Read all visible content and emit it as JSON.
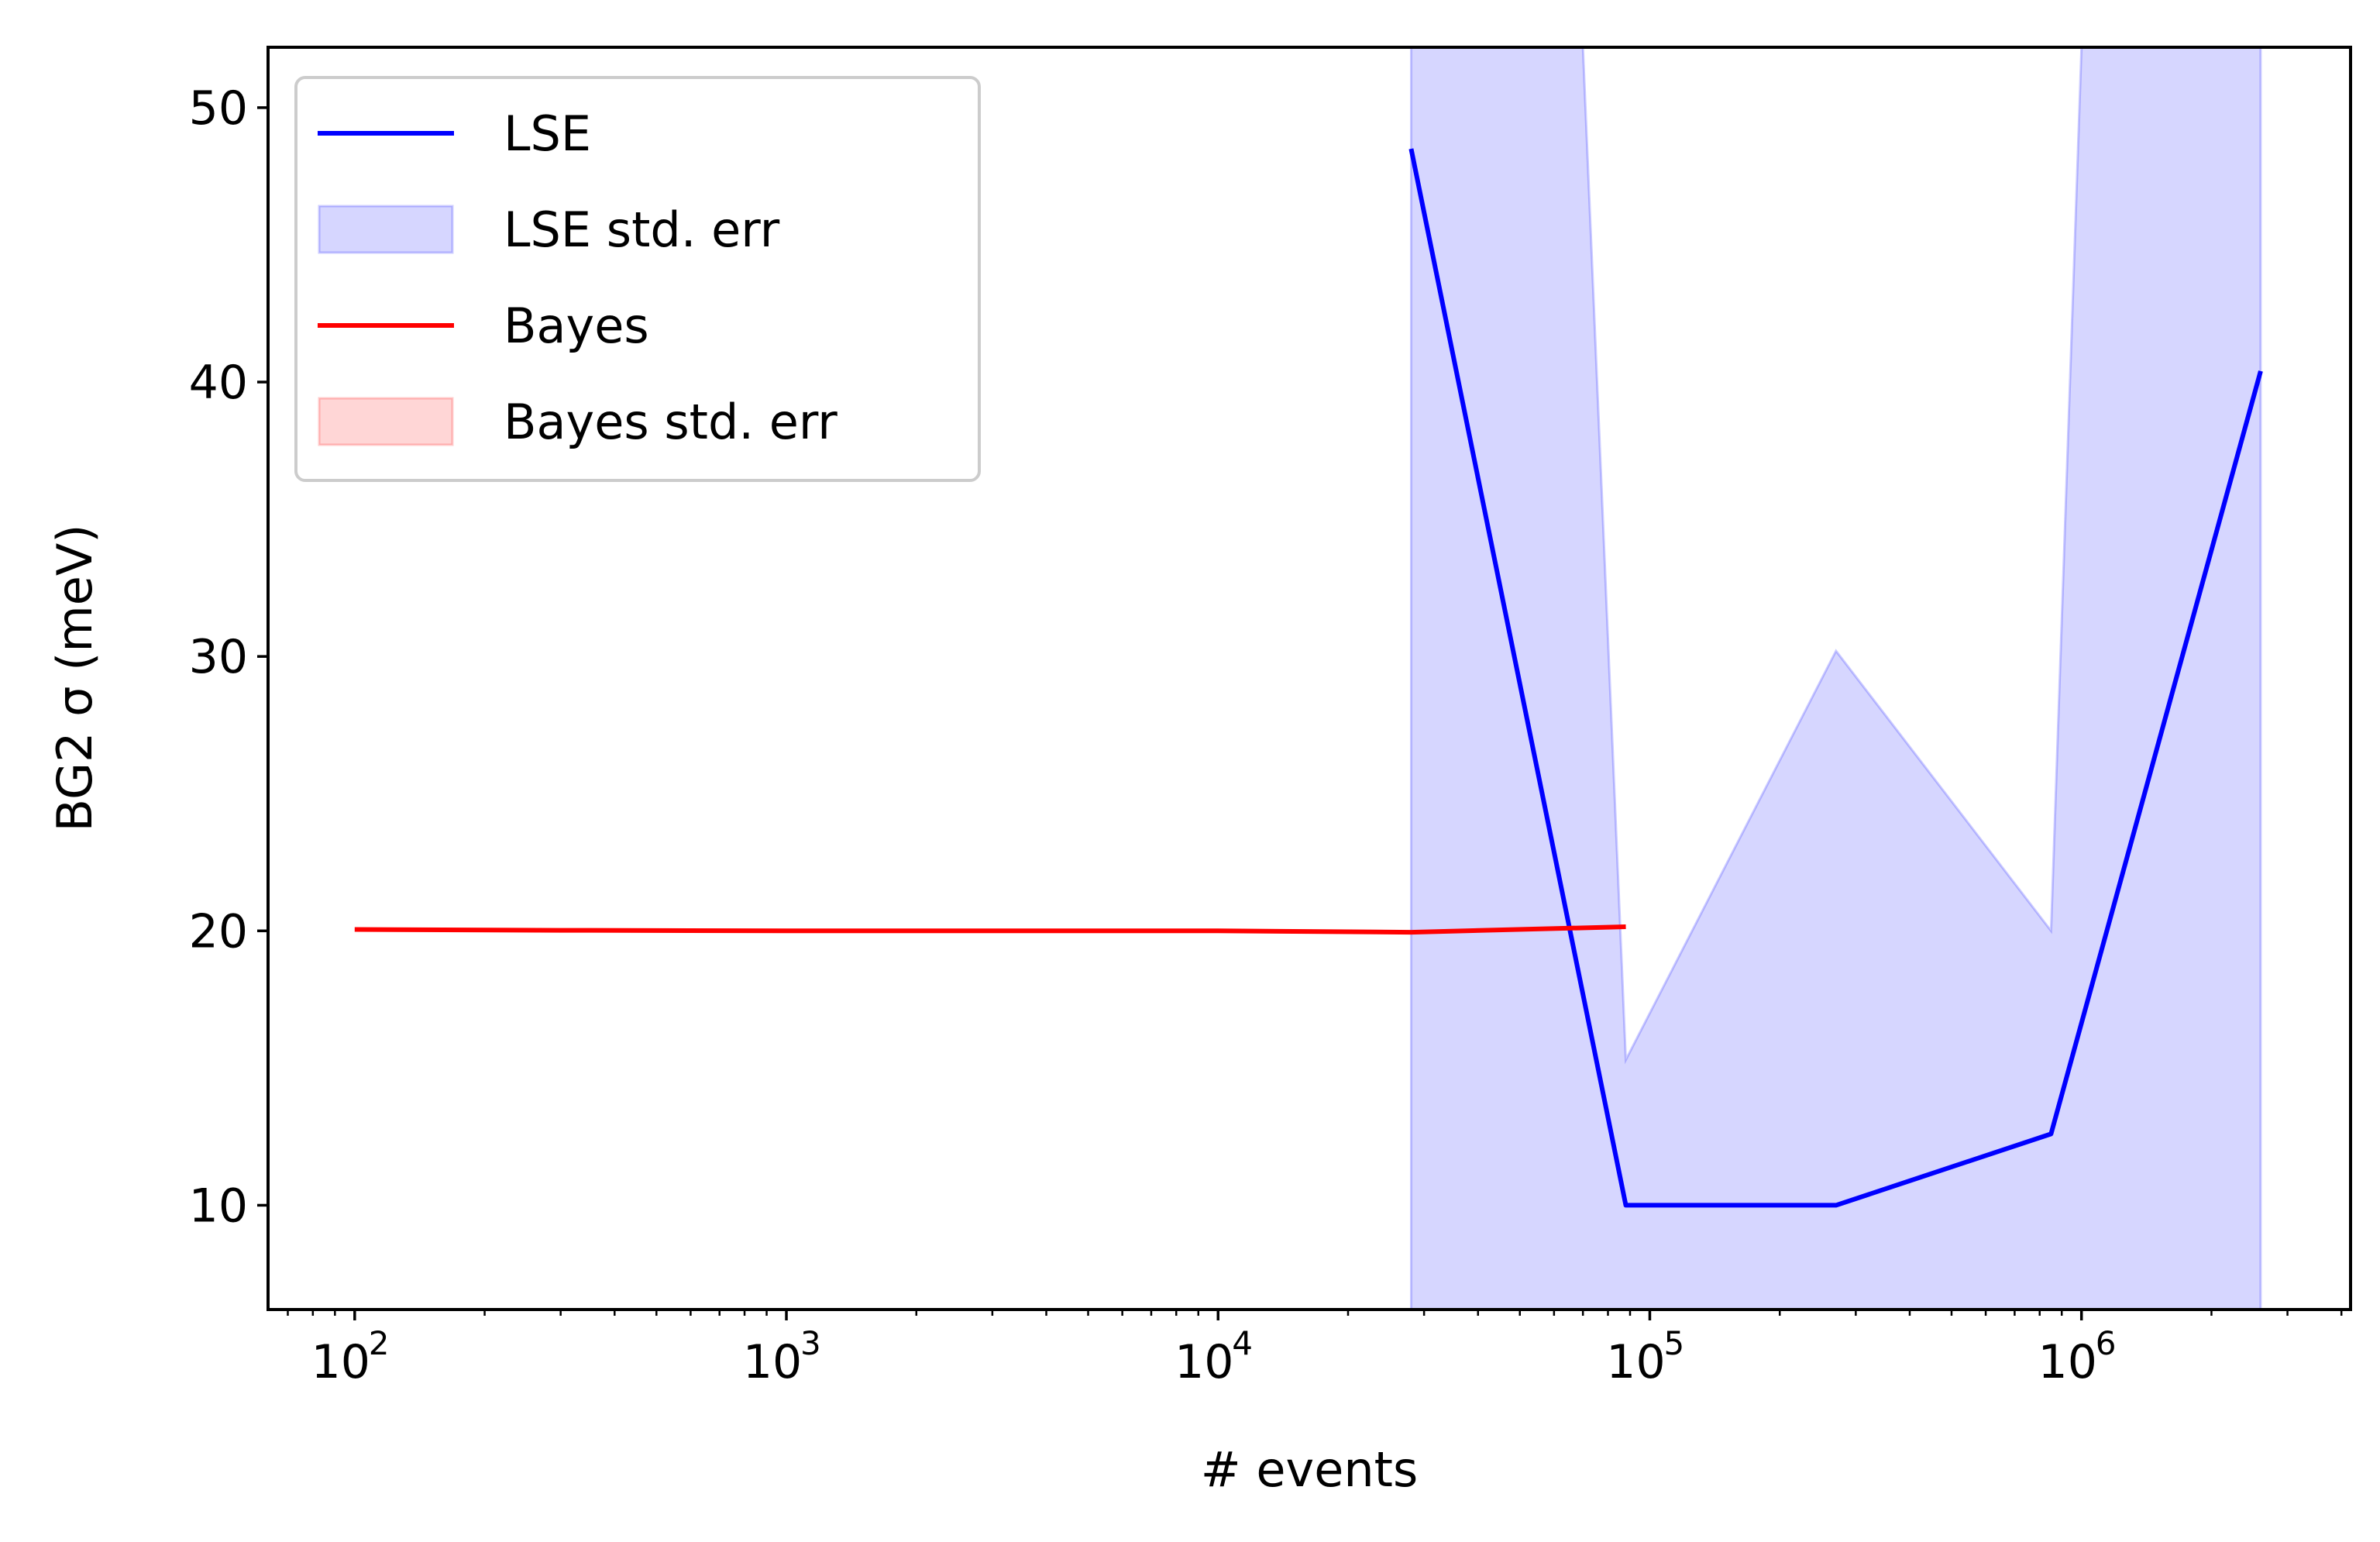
{
  "chart_data": {
    "type": "line",
    "xlabel": "# events",
    "ylabel": "BG2 σ (meV)",
    "xscale": "log",
    "xlim": [
      63,
      4200000
    ],
    "ylim": [
      6.2,
      52.2
    ],
    "grid": false,
    "legend_position": "top-left",
    "xticks": [
      {
        "value": 100,
        "base": "10",
        "exp": "2"
      },
      {
        "value": 1000,
        "base": "10",
        "exp": "3"
      },
      {
        "value": 10000,
        "base": "10",
        "exp": "4"
      },
      {
        "value": 100000,
        "base": "10",
        "exp": "5"
      },
      {
        "value": 1000000,
        "base": "10",
        "exp": "6"
      }
    ],
    "yticks": [
      10,
      20,
      30,
      40,
      50
    ],
    "series": [
      {
        "name": "LSE",
        "kind": "line",
        "color": "#0000ff",
        "x": [
          28000,
          88000,
          270000,
          850000,
          2600000
        ],
        "y": [
          48.5,
          10.0,
          10.0,
          12.6,
          40.4
        ]
      },
      {
        "name": "LSE std. err",
        "kind": "band",
        "color": "#0000ff",
        "x": [
          28000,
          70000,
          88000,
          270000,
          850000,
          1000000,
          2600000
        ],
        "upper": [
          52.2,
          52.2,
          15.3,
          30.2,
          20.0,
          52.2,
          52.2
        ],
        "lower": [
          6.2,
          6.2,
          6.2,
          6.2,
          6.2,
          6.2,
          6.2
        ]
      },
      {
        "name": "Bayes",
        "kind": "line",
        "color": "#ff0000",
        "x": [
          100,
          300,
          1000,
          3000,
          10000,
          28000,
          88000
        ],
        "y": [
          20.05,
          20.02,
          20.0,
          20.0,
          20.0,
          19.95,
          20.15
        ]
      },
      {
        "name": "Bayes std. err",
        "kind": "band",
        "color": "#ff0000",
        "x": [],
        "upper": [],
        "lower": []
      }
    ]
  }
}
